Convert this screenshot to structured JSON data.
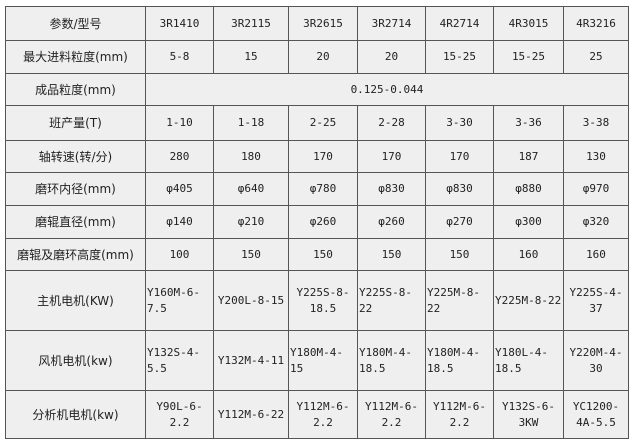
{
  "table": {
    "header": {
      "label": "参数/型号",
      "models": [
        "3R1410",
        "3R2115",
        "3R2615",
        "3R2714",
        "4R2714",
        "4R3015",
        "4R3216"
      ]
    },
    "rows": [
      {
        "label": "最大进料粒度(mm)",
        "cells": [
          "5-8",
          "15",
          "20",
          "20",
          "15-25",
          "15-25",
          "25"
        ]
      },
      {
        "label": "成品粒度(mm)",
        "merged": "0.125-0.044"
      },
      {
        "label": "班产量(T)",
        "cells": [
          "1-10",
          "1-18",
          "2-25",
          "2-28",
          "3-30",
          "3-36",
          "3-38"
        ]
      },
      {
        "label": "轴转速(转/分)",
        "cells": [
          "280",
          "180",
          "170",
          "170",
          "170",
          "187",
          "130"
        ]
      },
      {
        "label": "磨环内径(mm)",
        "cells": [
          "φ405",
          "φ640",
          "φ780",
          "φ830",
          "φ830",
          "φ880",
          "φ970"
        ]
      },
      {
        "label": "磨辊直径(mm)",
        "cells": [
          "φ140",
          "φ210",
          "φ260",
          "φ260",
          "φ270",
          "φ300",
          "φ320"
        ]
      },
      {
        "label": "磨辊及磨环高度(mm)",
        "cells": [
          "100",
          "150",
          "150",
          "150",
          "150",
          "160",
          "160"
        ]
      },
      {
        "label": "主机电机(KW)",
        "cells": [
          "Y160M-6-\n7.5",
          "Y200L-8-15",
          "Y225S-8-\n18.5",
          "Y225S-8-22",
          "Y225M-8-22",
          "Y225M-8-22",
          "Y225S-4-\n37"
        ]
      },
      {
        "label": "风机电机(kw)",
        "cells": [
          "Y132S-4-\n5.5",
          "Y132M-4-11",
          "Y180M-4-15",
          "Y180M-4-\n18.5",
          "Y180M-4-\n18.5",
          "Y180L-4-\n18.5",
          "Y220M-4-\n30"
        ]
      },
      {
        "label": "分析机电机(kw)",
        "cells": [
          "Y90L-6-\n2.2",
          "Y112M-6-22",
          "Y112M-6-\n2.2",
          "Y112M-6-\n2.2",
          "Y112M-6-\n2.2",
          "Y132S-6-\n3KW",
          "YC1200-\n4A-5.5"
        ]
      }
    ]
  }
}
